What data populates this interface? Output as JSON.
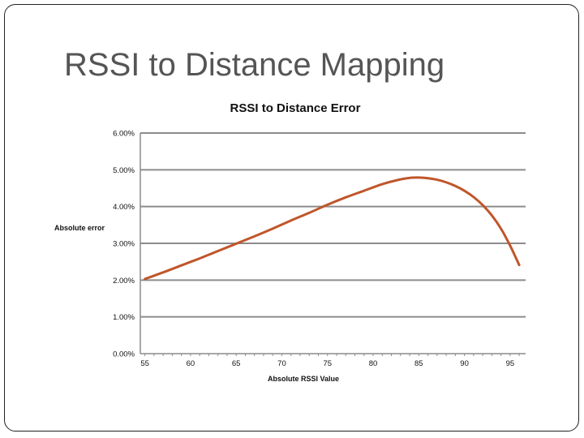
{
  "slide": {
    "title": "RSSI to Distance Mapping"
  },
  "chart_data": {
    "type": "line",
    "title": "RSSI to Distance Error",
    "xlabel": "Absolute RSSI Value",
    "ylabel": "Absolute error",
    "x_ticks": [
      "55",
      "60",
      "65",
      "70",
      "75",
      "80",
      "85",
      "90",
      "95"
    ],
    "y_ticks": [
      "0.00%",
      "1.00%",
      "2.00%",
      "3.00%",
      "4.00%",
      "5.00%",
      "6.00%"
    ],
    "xlim": [
      54.5,
      96.7
    ],
    "ylim": [
      0,
      0.06
    ],
    "grid": "horizontal",
    "legend": "none",
    "series": [
      {
        "color": "#c0562a",
        "x": [
          55,
          57,
          59,
          61,
          63,
          65,
          67,
          69,
          71,
          73,
          75,
          77,
          79,
          81,
          83,
          84,
          85,
          86,
          87,
          88,
          89,
          90,
          91,
          92,
          93,
          94,
          95,
          96
        ],
        "y": [
          0.0203,
          0.0221,
          0.024,
          0.0259,
          0.0279,
          0.0299,
          0.0319,
          0.034,
          0.0362,
          0.0383,
          0.0405,
          0.0425,
          0.0443,
          0.0461,
          0.0474,
          0.0478,
          0.0479,
          0.0477,
          0.0473,
          0.0466,
          0.0456,
          0.0443,
          0.0426,
          0.0404,
          0.0376,
          0.034,
          0.0294,
          0.0241
        ]
      }
    ]
  }
}
